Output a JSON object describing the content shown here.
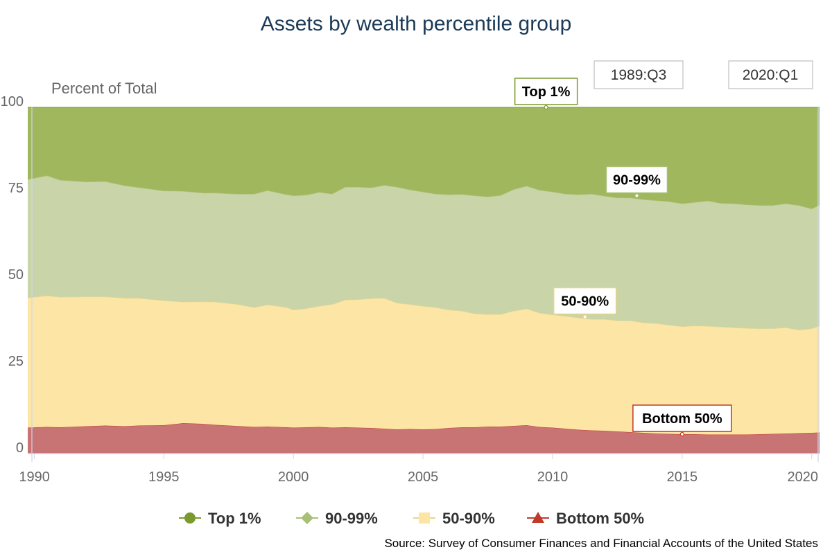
{
  "chart_data": {
    "type": "area",
    "stacked": true,
    "title": "Assets by wealth percentile group",
    "ylabel": "Percent of Total",
    "xlabel": "",
    "ylim": [
      0,
      100
    ],
    "xlim": [
      1989.75,
      2020.3
    ],
    "y_ticks": [
      0,
      25,
      50,
      75,
      100
    ],
    "x_ticks": [
      1990,
      1995,
      2000,
      2005,
      2010,
      2015,
      2020
    ],
    "range_start_label": "1989:Q3",
    "range_end_label": "2020:Q1",
    "source": "Source: Survey of Consumer Finances and Financial Accounts of the United States",
    "x": [
      1989.75,
      1990.5,
      1991,
      1992,
      1992.75,
      1993.5,
      1994,
      1995,
      1995.75,
      1996.5,
      1997,
      1997.75,
      1998.5,
      1999,
      1999.75,
      2000,
      2000.5,
      2001,
      2001.5,
      2002,
      2002.5,
      2003,
      2003.5,
      2004,
      2004.5,
      2005,
      2005.5,
      2006,
      2006.5,
      2007,
      2007.5,
      2008,
      2008.5,
      2009,
      2009.5,
      2010,
      2010.5,
      2011,
      2011.5,
      2012,
      2012.5,
      2013,
      2013.5,
      2014,
      2014.5,
      2015,
      2015.5,
      2016,
      2016.5,
      2017,
      2017.5,
      2018,
      2018.5,
      2019,
      2019.5,
      2020,
      2020.3
    ],
    "series": [
      {
        "name": "Bottom 50%",
        "color": "#c0392b",
        "fill": "#c97474",
        "marker": "triangle",
        "values": [
          7.5,
          7.7,
          7.6,
          7.9,
          8.1,
          7.9,
          8.1,
          8.2,
          8.8,
          8.6,
          8.3,
          8.0,
          7.7,
          7.8,
          7.6,
          7.5,
          7.6,
          7.7,
          7.5,
          7.6,
          7.5,
          7.4,
          7.2,
          7.0,
          7.1,
          7.0,
          7.1,
          7.4,
          7.6,
          7.6,
          7.8,
          7.8,
          8.0,
          8.2,
          7.7,
          7.5,
          7.2,
          6.9,
          6.7,
          6.6,
          6.4,
          6.2,
          6.0,
          5.8,
          5.7,
          5.6,
          5.6,
          5.5,
          5.5,
          5.5,
          5.5,
          5.6,
          5.7,
          5.8,
          5.9,
          6.0,
          6.1
        ]
      },
      {
        "name": "50-90%",
        "color": "#e8d48a",
        "fill": "#fde6a5",
        "marker": "square",
        "values": [
          37.5,
          37.9,
          37.6,
          37.4,
          37.2,
          37.0,
          36.8,
          36.0,
          35.0,
          35.3,
          35.5,
          35.2,
          34.5,
          35.2,
          34.6,
          34.0,
          34.3,
          34.9,
          35.6,
          36.8,
          37.0,
          37.4,
          37.7,
          36.5,
          36.0,
          35.6,
          35.1,
          34.1,
          33.6,
          32.8,
          32.4,
          32.4,
          33.2,
          33.6,
          32.9,
          32.6,
          32.5,
          32.3,
          32.1,
          32.2,
          32.0,
          32.2,
          31.8,
          31.8,
          31.4,
          31.1,
          31.3,
          31.3,
          31.1,
          30.9,
          30.7,
          30.5,
          30.4,
          30.6,
          29.8,
          30.1,
          30.8
        ]
      },
      {
        "name": "90-99%",
        "color": "#a9bf77",
        "fill": "#c9d5a8",
        "marker": "diamond",
        "values": [
          34.2,
          34.7,
          33.8,
          33.2,
          33.3,
          32.5,
          32.0,
          31.7,
          32.0,
          31.4,
          31.5,
          31.8,
          32.8,
          33.0,
          32.6,
          33.0,
          32.8,
          32.9,
          31.9,
          32.6,
          32.5,
          32.0,
          32.6,
          33.5,
          33.1,
          33.0,
          32.8,
          33.3,
          33.7,
          34.1,
          34.0,
          34.4,
          35.1,
          35.5,
          35.5,
          35.5,
          35.3,
          35.6,
          36.2,
          35.6,
          35.5,
          35.5,
          35.6,
          35.5,
          35.7,
          35.5,
          35.7,
          36.2,
          35.7,
          35.8,
          35.7,
          35.6,
          35.6,
          35.8,
          36.0,
          34.6,
          34.9
        ]
      },
      {
        "name": "Top 1%",
        "color": "#7a9a2e",
        "fill": "#a1b75e",
        "marker": "circle",
        "values": [
          20.8,
          19.7,
          21.0,
          21.5,
          21.4,
          22.6,
          23.1,
          24.1,
          24.2,
          24.7,
          24.7,
          25.0,
          25.0,
          24.0,
          25.2,
          25.5,
          25.3,
          24.5,
          25.0,
          23.0,
          23.0,
          23.2,
          22.5,
          23.0,
          23.8,
          24.4,
          25.0,
          25.2,
          25.1,
          25.5,
          25.8,
          25.4,
          23.7,
          22.7,
          23.9,
          24.4,
          25.0,
          25.2,
          25.0,
          25.6,
          26.1,
          26.1,
          26.6,
          26.9,
          27.2,
          27.8,
          27.4,
          27.0,
          27.7,
          27.8,
          28.1,
          28.3,
          28.3,
          27.8,
          28.3,
          29.3,
          28.2
        ]
      }
    ],
    "annotations": [
      {
        "text": "Top 1%",
        "series": "Top 1%",
        "x": 2009.75,
        "y": 100
      },
      {
        "text": "90-99%",
        "series": "90-99%",
        "x": 2013.25,
        "y": 74.5
      },
      {
        "text": "50-90%",
        "series": "50-90%",
        "x": 2011.25,
        "y": 39.5
      },
      {
        "text": "Bottom 50%",
        "series": "Bottom 50%",
        "x": 2015.0,
        "y": 5.6
      }
    ],
    "legend": {
      "position": "bottom",
      "order": [
        "Top 1%",
        "90-99%",
        "50-90%",
        "Bottom 50%"
      ]
    }
  }
}
